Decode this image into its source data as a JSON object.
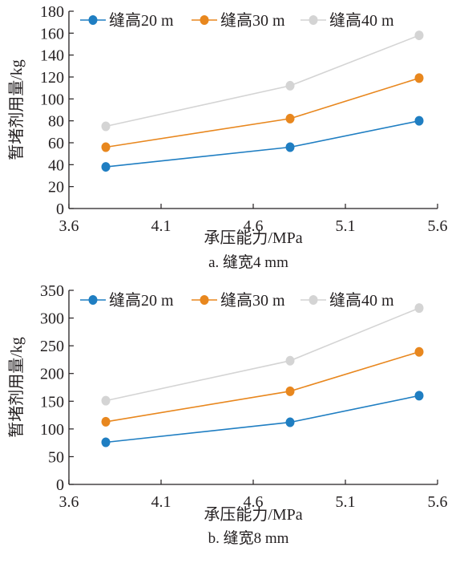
{
  "chart_data": [
    {
      "type": "line",
      "caption": "a. 缝宽4 mm",
      "xlabel": "承压能力/MPa",
      "ylabel": "暂堵剂用量/kg",
      "xlim": [
        3.6,
        5.6
      ],
      "ylim": [
        0,
        180
      ],
      "xticks": [
        "3.6",
        "4.1",
        "4.6",
        "5.1",
        "5.6"
      ],
      "yticks": [
        "0",
        "20",
        "40",
        "60",
        "80",
        "100",
        "120",
        "140",
        "160",
        "180"
      ],
      "grid": false,
      "legend_position": "top",
      "series": [
        {
          "name": "缝高20 m",
          "color": "#1f7ec2",
          "x": [
            3.8,
            4.8,
            5.5
          ],
          "y": [
            38,
            56,
            80
          ]
        },
        {
          "name": "缝高30 m",
          "color": "#e8871e",
          "x": [
            3.8,
            4.8,
            5.5
          ],
          "y": [
            56,
            82,
            119
          ]
        },
        {
          "name": "缝高40 m",
          "color": "#d4d4d4",
          "x": [
            3.8,
            4.8,
            5.5
          ],
          "y": [
            75,
            112,
            158
          ]
        }
      ]
    },
    {
      "type": "line",
      "caption": "b. 缝宽8 mm",
      "xlabel": "承压能力/MPa",
      "ylabel": "暂堵剂用量/kg",
      "xlim": [
        3.6,
        5.6
      ],
      "ylim": [
        0,
        350
      ],
      "xticks": [
        "3.6",
        "4.1",
        "4.6",
        "5.1",
        "5.6"
      ],
      "yticks": [
        "0",
        "50",
        "100",
        "150",
        "200",
        "250",
        "300",
        "350"
      ],
      "grid": false,
      "legend_position": "top",
      "series": [
        {
          "name": "缝高20 m",
          "color": "#1f7ec2",
          "x": [
            3.8,
            4.8,
            5.5
          ],
          "y": [
            76,
            112,
            160
          ]
        },
        {
          "name": "缝高30 m",
          "color": "#e8871e",
          "x": [
            3.8,
            4.8,
            5.5
          ],
          "y": [
            113,
            168,
            239
          ]
        },
        {
          "name": "缝高40 m",
          "color": "#d4d4d4",
          "x": [
            3.8,
            4.8,
            5.5
          ],
          "y": [
            151,
            223,
            318
          ]
        }
      ]
    }
  ]
}
